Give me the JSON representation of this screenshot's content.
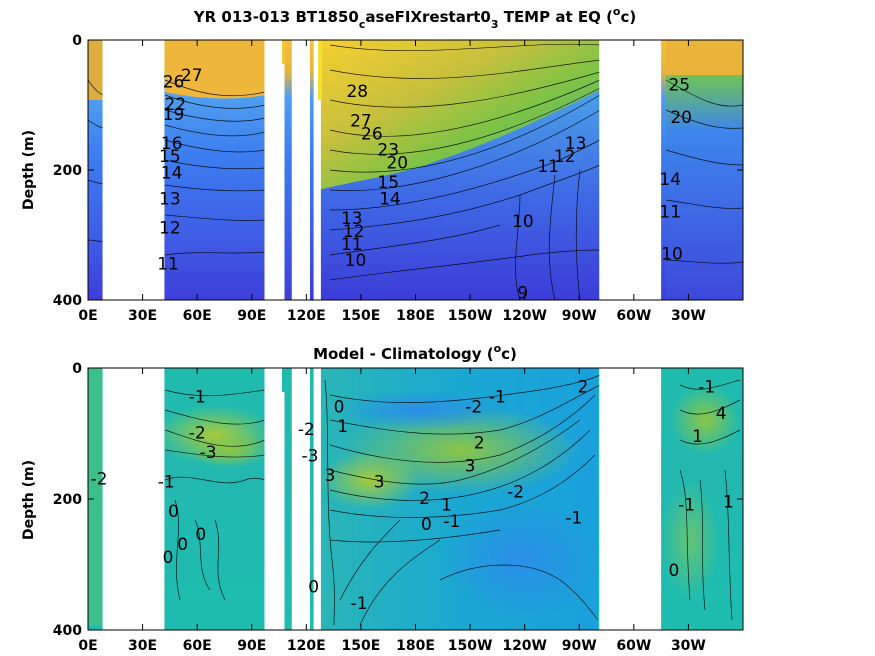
{
  "chart_data": [
    {
      "type": "heatmap",
      "title": {
        "pre": "YR 013-013 BT1850",
        "sub1": "c",
        "mid": "aseFIXrestart0",
        "sub2": "3",
        "post": " TEMP at EQ (",
        "sup": "o",
        "end": "c)"
      },
      "ylabel": "Depth (m)",
      "xticks": [
        "0E",
        "30E",
        "60E",
        "90E",
        "120E",
        "150E",
        "180E",
        "150W",
        "120W",
        "90W",
        "60W",
        "30W"
      ],
      "xlim": [
        0,
        360
      ],
      "yticks": [
        "0",
        "200",
        "400"
      ],
      "ylim": [
        400,
        0
      ],
      "land_gaps_lon": [
        [
          8,
          42
        ],
        [
          97,
          108
        ],
        [
          112,
          122
        ],
        [
          124,
          128
        ],
        [
          281,
          315
        ]
      ],
      "contour_labels": [
        {
          "text": "27",
          "lon": 57,
          "depth": 55
        },
        {
          "text": "26",
          "lon": 47,
          "depth": 65
        },
        {
          "text": "22",
          "lon": 48,
          "depth": 100
        },
        {
          "text": "19",
          "lon": 47,
          "depth": 115
        },
        {
          "text": "16",
          "lon": 46,
          "depth": 160
        },
        {
          "text": "15",
          "lon": 45,
          "depth": 180
        },
        {
          "text": "14",
          "lon": 46,
          "depth": 205
        },
        {
          "text": "13",
          "lon": 45,
          "depth": 245
        },
        {
          "text": "12",
          "lon": 45,
          "depth": 290
        },
        {
          "text": "11",
          "lon": 44,
          "depth": 345
        },
        {
          "text": "28",
          "lon": 148,
          "depth": 80
        },
        {
          "text": "27",
          "lon": 150,
          "depth": 125
        },
        {
          "text": "26",
          "lon": 156,
          "depth": 145
        },
        {
          "text": "23",
          "lon": 165,
          "depth": 170
        },
        {
          "text": "20",
          "lon": 170,
          "depth": 190
        },
        {
          "text": "15",
          "lon": 165,
          "depth": 220
        },
        {
          "text": "14",
          "lon": 166,
          "depth": 245
        },
        {
          "text": "13",
          "lon": 145,
          "depth": 275
        },
        {
          "text": "12",
          "lon": 146,
          "depth": 295
        },
        {
          "text": "11",
          "lon": 145,
          "depth": 315
        },
        {
          "text": "10",
          "lon": 147,
          "depth": 340
        },
        {
          "text": "13",
          "lon": 268,
          "depth": 160
        },
        {
          "text": "12",
          "lon": 262,
          "depth": 180
        },
        {
          "text": "11",
          "lon": 253,
          "depth": 195
        },
        {
          "text": "10",
          "lon": 239,
          "depth": 280
        },
        {
          "text": "9",
          "lon": 239,
          "depth": 390
        },
        {
          "text": "25",
          "lon": 325,
          "depth": 70
        },
        {
          "text": "20",
          "lon": 326,
          "depth": 120
        },
        {
          "text": "14",
          "lon": 320,
          "depth": 215
        },
        {
          "text": "11",
          "lon": 320,
          "depth": 265
        },
        {
          "text": "10",
          "lon": 321,
          "depth": 330
        }
      ]
    },
    {
      "type": "heatmap",
      "title": {
        "pre": "Model - Climatology (",
        "sup": "o",
        "end": "c)"
      },
      "ylabel": "Depth (m)",
      "xticks": [
        "0E",
        "30E",
        "60E",
        "90E",
        "120E",
        "150E",
        "180E",
        "150W",
        "120W",
        "90W",
        "60W",
        "30W"
      ],
      "xlim": [
        0,
        360
      ],
      "yticks": [
        "0",
        "200",
        "400"
      ],
      "ylim": [
        400,
        0
      ],
      "land_gaps_lon": [
        [
          8,
          42
        ],
        [
          97,
          108
        ],
        [
          112,
          122
        ],
        [
          124,
          128
        ],
        [
          281,
          315
        ]
      ],
      "contour_labels": [
        {
          "text": "-1",
          "lon": 60,
          "depth": 45
        },
        {
          "text": "-2",
          "lon": 60,
          "depth": 100
        },
        {
          "text": "-3",
          "lon": 66,
          "depth": 130
        },
        {
          "text": "-2",
          "lon": 6,
          "depth": 170
        },
        {
          "text": "-1",
          "lon": 43,
          "depth": 175
        },
        {
          "text": "0",
          "lon": 47,
          "depth": 220
        },
        {
          "text": "0",
          "lon": 52,
          "depth": 270
        },
        {
          "text": "0",
          "lon": 62,
          "depth": 255
        },
        {
          "text": "0",
          "lon": 44,
          "depth": 290
        },
        {
          "text": "-2",
          "lon": 120,
          "depth": 95
        },
        {
          "text": "-3",
          "lon": 122,
          "depth": 135
        },
        {
          "text": "3",
          "lon": 133,
          "depth": 165
        },
        {
          "text": "0",
          "lon": 138,
          "depth": 60
        },
        {
          "text": "1",
          "lon": 140,
          "depth": 90
        },
        {
          "text": "3",
          "lon": 160,
          "depth": 175
        },
        {
          "text": "2",
          "lon": 185,
          "depth": 200
        },
        {
          "text": "1",
          "lon": 197,
          "depth": 210
        },
        {
          "text": "0",
          "lon": 186,
          "depth": 240
        },
        {
          "text": "-1",
          "lon": 200,
          "depth": 235
        },
        {
          "text": "2",
          "lon": 215,
          "depth": 115
        },
        {
          "text": "3",
          "lon": 210,
          "depth": 150
        },
        {
          "text": "-2",
          "lon": 212,
          "depth": 60
        },
        {
          "text": "-1",
          "lon": 225,
          "depth": 45
        },
        {
          "text": "-2",
          "lon": 235,
          "depth": 190
        },
        {
          "text": "2",
          "lon": 272,
          "depth": 30
        },
        {
          "text": "-1",
          "lon": 267,
          "depth": 230
        },
        {
          "text": "0",
          "lon": 124,
          "depth": 335
        },
        {
          "text": "-1",
          "lon": 149,
          "depth": 360
        },
        {
          "text": "-1",
          "lon": 329,
          "depth": 210
        },
        {
          "text": "0",
          "lon": 322,
          "depth": 310
        },
        {
          "text": "-1",
          "lon": 340,
          "depth": 30
        },
        {
          "text": "4",
          "lon": 348,
          "depth": 70
        },
        {
          "text": "1",
          "lon": 335,
          "depth": 105
        },
        {
          "text": "1",
          "lon": 352,
          "depth": 205
        }
      ]
    }
  ],
  "colors": {
    "cold": "#3e3ede",
    "blue": "#3b79f0",
    "teal": "#17b5c8",
    "green": "#86c83a",
    "yellow": "#f4c638",
    "land": "#ffffff",
    "axes": "#000000"
  }
}
